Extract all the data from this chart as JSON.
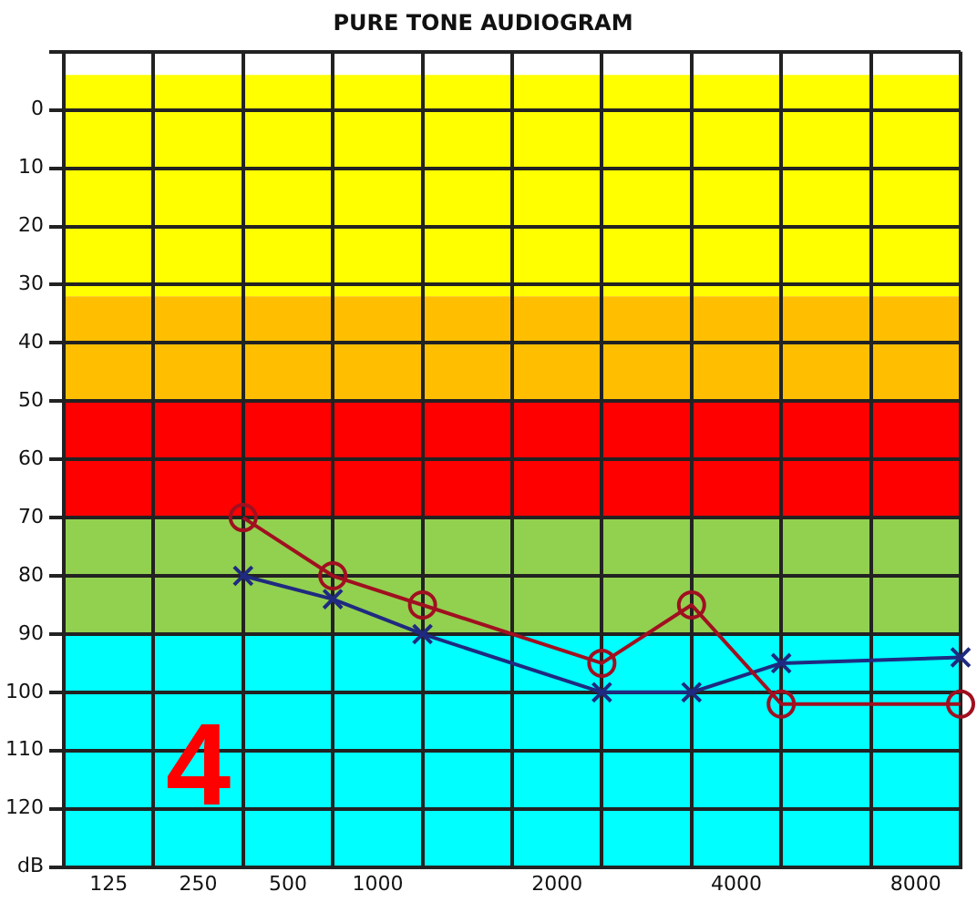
{
  "chart_data": {
    "type": "line",
    "title": "PURE TONE AUDIOGRAM",
    "categories": [
      null,
      "125",
      null,
      "250",
      null,
      "500",
      null,
      "1000",
      null,
      null,
      null,
      "2000",
      null,
      null,
      null,
      "4000",
      null,
      null,
      null,
      "8000",
      null
    ],
    "ylim": [
      130,
      -10
    ],
    "yticks": [
      {
        "value": -10,
        "label": null
      },
      0,
      10,
      20,
      30,
      40,
      50,
      60,
      70,
      80,
      90,
      100,
      110,
      120,
      {
        "value": 130,
        "label": "dB"
      }
    ],
    "series": [
      {
        "color": "#a01020",
        "marker": "circle",
        "values": [
          null,
          null,
          null,
          null,
          70,
          null,
          80,
          null,
          85,
          null,
          null,
          null,
          95,
          null,
          85,
          null,
          102,
          null,
          null,
          null,
          102
        ]
      },
      {
        "color": "#1f2a80",
        "marker": "cross",
        "values": [
          null,
          null,
          null,
          null,
          80,
          null,
          84,
          null,
          90,
          null,
          null,
          null,
          100,
          null,
          100,
          null,
          95,
          null,
          null,
          null,
          94
        ]
      }
    ],
    "bands": [
      {
        "axis": "y",
        "from": -6,
        "to": 32,
        "color": "#ffff00"
      },
      {
        "axis": "y",
        "from": 32,
        "to": 50,
        "color": "#ffbf00"
      },
      {
        "axis": "y",
        "from": 50,
        "to": 70,
        "color": "#ff0000"
      },
      {
        "axis": "y",
        "from": 70,
        "to": 90,
        "color": "#92d050"
      },
      {
        "axis": "y",
        "from": 90,
        "to": 130,
        "color": "#00ffff"
      }
    ],
    "annotations": [
      "4"
    ],
    "grid": true,
    "legend": false
  }
}
